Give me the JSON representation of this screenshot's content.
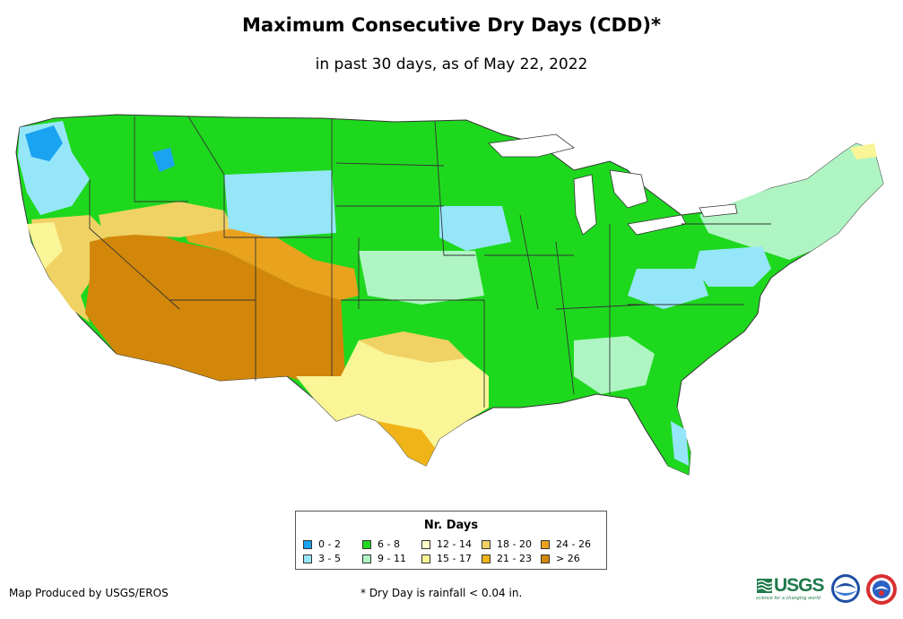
{
  "header": {
    "title": "Maximum Consecutive Dry Days (CDD)*",
    "subtitle": "in past 30 days, as of May 22, 2022"
  },
  "legend": {
    "title": "Nr. Days",
    "items": [
      {
        "label": "0 - 2",
        "color": "#1aa3f0"
      },
      {
        "label": "6 - 8",
        "color": "#1ed81e"
      },
      {
        "label": "12 - 14",
        "color": "#ffffc8"
      },
      {
        "label": "18 - 20",
        "color": "#f0d264"
      },
      {
        "label": "24 - 26",
        "color": "#e9a21e"
      },
      {
        "label": "3 - 5",
        "color": "#96e6fa"
      },
      {
        "label": "9 - 11",
        "color": "#aff5c3"
      },
      {
        "label": "15 - 17",
        "color": "#faf596"
      },
      {
        "label": "21 - 23",
        "color": "#f0b419"
      },
      {
        "label": "> 26",
        "color": "#d2870a"
      }
    ]
  },
  "footer": {
    "credit": "Map Produced by USGS/EROS",
    "note": "* Dry Day is rainfall < 0.04 in.",
    "usgs_logo_text": "USGS",
    "usgs_tagline": "science for a changing world",
    "logo_icons": [
      "usgs-logo-icon",
      "noaa-logo-icon",
      "nws-logo-icon"
    ]
  }
}
